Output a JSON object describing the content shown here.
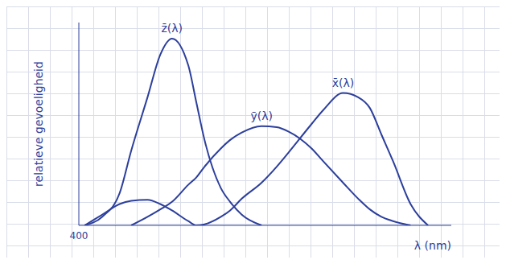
{
  "chart_data": {
    "type": "line",
    "x_label": "λ (nm)",
    "y_label": "relatieve gevoeligheid",
    "x": [
      405,
      420,
      435,
      445,
      459,
      470,
      480,
      494,
      501,
      508,
      522,
      530,
      540,
      557,
      570,
      580,
      600,
      610,
      627,
      640,
      650,
      660,
      670,
      685,
      700
    ],
    "series": [
      {
        "name": "z̄(λ)",
        "color": "#2c3f9c",
        "values": [
          0,
          0.08,
          0.3,
          0.7,
          1.2,
          1.6,
          1.75,
          1.5,
          1.15,
          0.8,
          0.35,
          0.22,
          0.1,
          0,
          null,
          null,
          null,
          null,
          null,
          null,
          null,
          null,
          null,
          null,
          null
        ]
      },
      {
        "name": "ȳ(λ)",
        "color": "#2c3f9c",
        "values": [
          null,
          null,
          null,
          0,
          0.08,
          0.15,
          0.22,
          0.38,
          0.45,
          0.55,
          0.72,
          0.8,
          0.87,
          0.93,
          0.92,
          0.88,
          0.72,
          0.6,
          0.4,
          0.25,
          0.15,
          0.08,
          0.04,
          0,
          null
        ]
      },
      {
        "name": "x̄(λ)",
        "color": "#2c3f9c",
        "values": [
          0,
          0.1,
          0.2,
          0.23,
          0.24,
          0.2,
          0.14,
          0.04,
          0,
          0.01,
          0.08,
          0.14,
          0.25,
          0.4,
          0.55,
          0.68,
          0.95,
          1.08,
          1.24,
          1.2,
          1.1,
          0.85,
          0.6,
          0.2,
          0
        ]
      }
    ],
    "xlim": [
      400,
      720
    ],
    "xticks": [
      400
    ],
    "ylim": [
      0,
      1.9
    ],
    "yticks": [],
    "tick_labels": "x"
  }
}
